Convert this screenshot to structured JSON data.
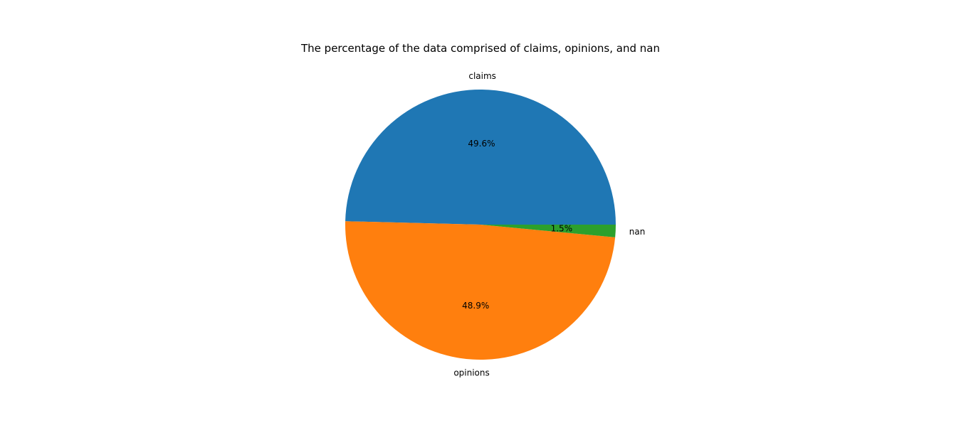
{
  "chart_data": {
    "type": "pie",
    "title": "The percentage of the data comprised of claims, opinions, and nan",
    "slices": [
      {
        "label": "claims",
        "value": 49.6,
        "pct_label": "49.6%",
        "color": "#1f77b4"
      },
      {
        "label": "opinions",
        "value": 48.9,
        "pct_label": "48.9%",
        "color": "#ff7f0e"
      },
      {
        "label": "nan",
        "value": 1.5,
        "pct_label": "1.5%",
        "color": "#2ca02c"
      }
    ],
    "start_angle_deg": 0,
    "direction": "counterclockwise"
  }
}
